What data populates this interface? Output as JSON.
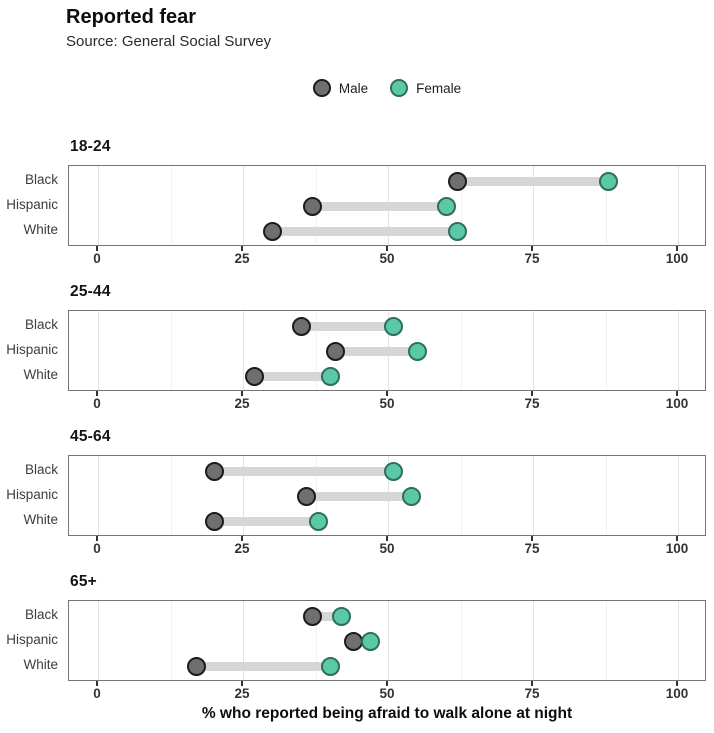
{
  "chart_data": {
    "type": "dumbbell",
    "title": "Reported fear",
    "subtitle": "Source: General Social Survey",
    "xlabel": "% who reported being afraid to walk alone at night",
    "legend": [
      "Male",
      "Female"
    ],
    "legend_position": "top-center",
    "x_ticks": [
      0,
      25,
      50,
      75,
      100
    ],
    "x_minor_ticks": [
      12.5,
      37.5,
      62.5,
      87.5
    ],
    "xlim": [
      -5,
      105
    ],
    "grid": true,
    "panels": [
      {
        "label": "18-24",
        "rows": [
          {
            "category": "Black",
            "male": 62,
            "female": 88
          },
          {
            "category": "Hispanic",
            "male": 37,
            "female": 60
          },
          {
            "category": "White",
            "male": 30,
            "female": 62
          }
        ]
      },
      {
        "label": "25-44",
        "rows": [
          {
            "category": "Black",
            "male": 35,
            "female": 51
          },
          {
            "category": "Hispanic",
            "male": 41,
            "female": 55
          },
          {
            "category": "White",
            "male": 27,
            "female": 40
          }
        ]
      },
      {
        "label": "45-64",
        "rows": [
          {
            "category": "Black",
            "male": 20,
            "female": 51
          },
          {
            "category": "Hispanic",
            "male": 36,
            "female": 54
          },
          {
            "category": "White",
            "male": 20,
            "female": 38
          }
        ]
      },
      {
        "label": "65+",
        "rows": [
          {
            "category": "Black",
            "male": 37,
            "female": 42
          },
          {
            "category": "Hispanic",
            "male": 44,
            "female": 47
          },
          {
            "category": "White",
            "male": 17,
            "female": 40
          }
        ]
      }
    ],
    "colors": {
      "male_fill": "#6f6f6f",
      "male_stroke": "#1c1c1c",
      "female_fill": "#5cc9a6",
      "female_stroke": "#2e6e5c",
      "connector": "#d6d6d6",
      "panel_border": "#757575",
      "grid_major": "#e3e3e3",
      "grid_minor": "#f1f1f1"
    }
  }
}
